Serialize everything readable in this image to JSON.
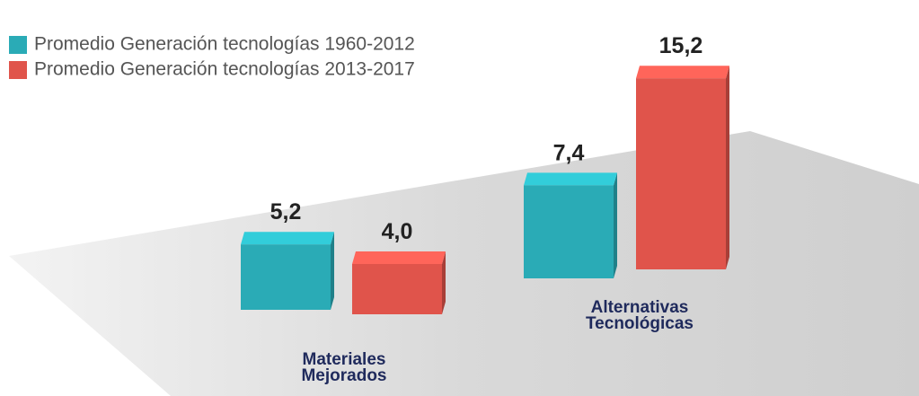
{
  "chart_data": {
    "type": "bar",
    "categories": [
      "Materiales Mejorados",
      "Alternativas Tecnológicas"
    ],
    "series": [
      {
        "name": "Promedio Generación tecnologías 1960-2012",
        "color": "#2aabb6",
        "values": [
          5.2,
          7.4
        ],
        "value_labels": [
          "5,2",
          "7,4"
        ]
      },
      {
        "name": "Promedio Generación tecnologías 2013-2017",
        "color": "#e0544b",
        "values": [
          4.0,
          15.2
        ],
        "value_labels": [
          "4,0",
          "15,2"
        ]
      }
    ],
    "legend": "top-left"
  }
}
